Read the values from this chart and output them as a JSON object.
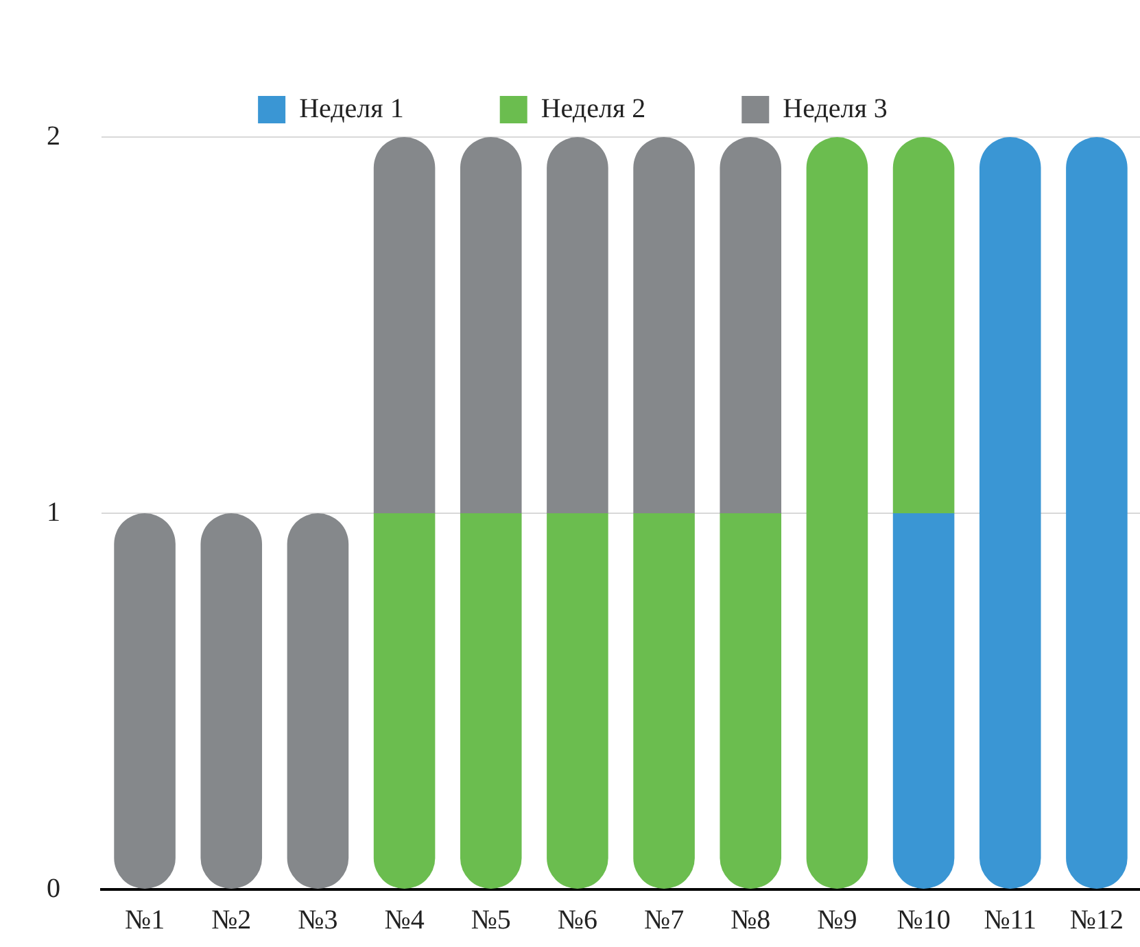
{
  "chart_data": {
    "type": "bar",
    "stacked": true,
    "categories": [
      "№1",
      "№2",
      "№3",
      "№4",
      "№5",
      "№6",
      "№7",
      "№8",
      "№9",
      "№10",
      "№11",
      "№12"
    ],
    "series": [
      {
        "name": "Неделя 1",
        "color": "#3a96d4",
        "values": [
          null,
          null,
          null,
          null,
          null,
          null,
          null,
          null,
          null,
          1,
          2,
          2
        ]
      },
      {
        "name": "Неделя 2",
        "color": "#6bbd4f",
        "values": [
          null,
          null,
          null,
          1,
          1,
          1,
          1,
          1,
          2,
          1,
          null,
          null
        ]
      },
      {
        "name": "Неделя 3",
        "color": "#85888b",
        "values": [
          1,
          1,
          1,
          1,
          1,
          1,
          1,
          1,
          null,
          null,
          null,
          null
        ]
      }
    ],
    "ylim": [
      0,
      2
    ],
    "yticks": [
      0,
      1,
      2
    ],
    "grid": "y",
    "legend": "top"
  }
}
